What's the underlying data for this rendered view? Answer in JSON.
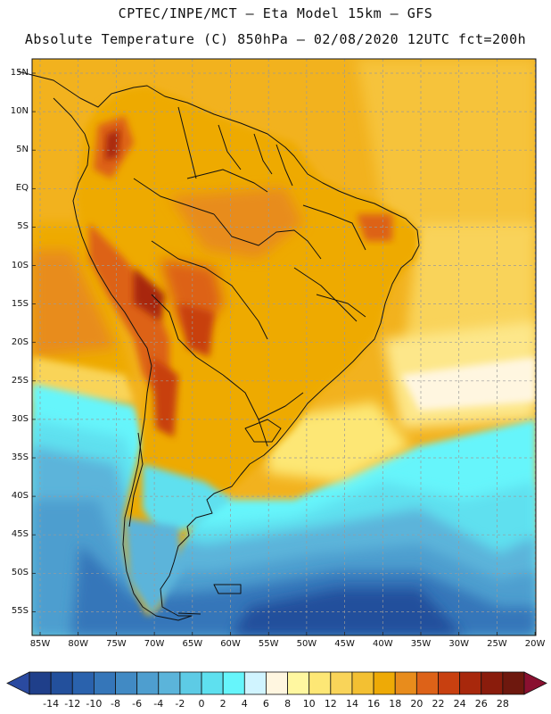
{
  "header": {
    "line1": "CPTEC/INPE/MCT –  Eta Model 15km – GFS",
    "line2": "Absolute Temperature (C) 850hPa – 02/08/2020 12UTC fct=200h"
  },
  "axes": {
    "lat_labels": [
      "15N",
      "10N",
      "5N",
      "EQ",
      "5S",
      "10S",
      "15S",
      "20S",
      "25S",
      "30S",
      "35S",
      "40S",
      "45S",
      "50S",
      "55S"
    ],
    "lon_labels": [
      "85W",
      "80W",
      "75W",
      "70W",
      "65W",
      "60W",
      "55W",
      "50W",
      "45W",
      "40W",
      "35W",
      "30W",
      "25W",
      "20W"
    ]
  },
  "colorbar": {
    "labels": [
      "-14",
      "-12",
      "-10",
      "-8",
      "-6",
      "-4",
      "-2",
      "0",
      "2",
      "4",
      "6",
      "8",
      "10",
      "12",
      "14",
      "16",
      "18",
      "20",
      "22",
      "24",
      "26",
      "28"
    ],
    "colors": [
      "#1f3f8a",
      "#23509c",
      "#2a62ad",
      "#3576b9",
      "#418ac4",
      "#4e9ecf",
      "#5bb4da",
      "#5dcbe5",
      "#5ee0ef",
      "#66f5fb",
      "#d0f4ff",
      "#fff6e0",
      "#fff7a0",
      "#fde775",
      "#f9d459",
      "#f3c032",
      "#eeaa06",
      "#e88c1c",
      "#dd6218",
      "#c84010",
      "#a8280c",
      "#8a1c0c",
      "#6e180e"
    ],
    "left_arrow_color": "#2a4aa0",
    "right_arrow_color": "#8a1030"
  }
}
